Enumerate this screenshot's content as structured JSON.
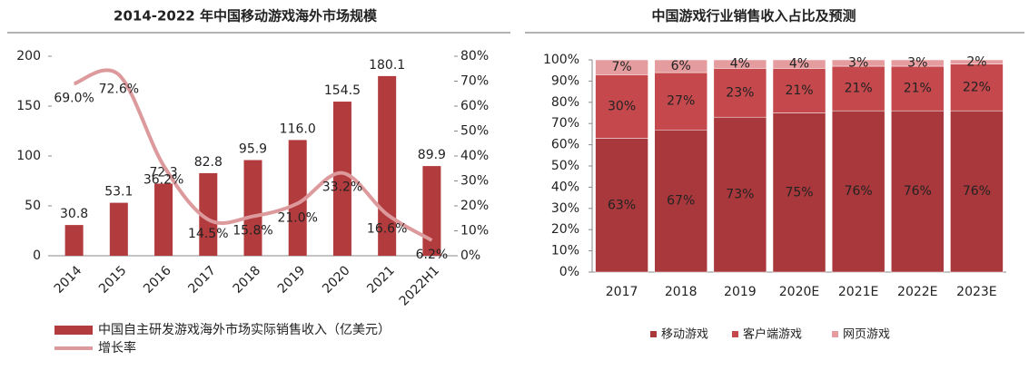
{
  "chart_data": [
    {
      "type": "combo",
      "title": "2014-2022 年中国移动游戏海外市场规模",
      "categories": [
        "2014",
        "2015",
        "2016",
        "2017",
        "2018",
        "2019",
        "2020",
        "2021",
        "2022H1"
      ],
      "series": [
        {
          "name": "中国自主研发游戏海外市场实际销售收入（亿美元）",
          "type": "bar",
          "color": "#b23b3d",
          "values": [
            30.8,
            53.1,
            72.3,
            82.8,
            95.9,
            116.0,
            154.5,
            180.1,
            89.9
          ],
          "value_labels": [
            "30.8",
            "53.1",
            "72.3",
            "82.8",
            "95.9",
            "116.0",
            "154.5",
            "180.1",
            "89.9"
          ]
        },
        {
          "name": "增长率",
          "type": "line",
          "axis": "y2",
          "color": "#dc9a9c",
          "values": [
            69.0,
            72.6,
            36.2,
            14.5,
            15.8,
            21.0,
            33.2,
            16.6,
            6.2
          ],
          "value_labels": [
            "69.0%",
            "72.6%",
            "36.2%",
            "14.5%",
            "15.8%",
            "21.0%",
            "33.2%",
            "16.6%",
            "6.2%"
          ]
        }
      ],
      "ylim": [
        0,
        200
      ],
      "yticks": [
        0,
        50,
        100,
        150,
        200
      ],
      "y2lim": [
        0,
        80
      ],
      "y2ticks": [
        {
          "value": 0,
          "label": "0%"
        },
        {
          "value": 10,
          "label": "10%"
        },
        {
          "value": 20,
          "label": "20%"
        },
        {
          "value": 30,
          "label": "30%"
        },
        {
          "value": 40,
          "label": "40%"
        },
        {
          "value": 50,
          "label": "50%"
        },
        {
          "value": 60,
          "label": "60%"
        },
        {
          "value": 70,
          "label": "70%"
        },
        {
          "value": 80,
          "label": "80%"
        }
      ],
      "legend": "bottom"
    },
    {
      "type": "stacked_bar",
      "title": "中国游戏行业销售收入占比及预测",
      "categories": [
        "2017",
        "2018",
        "2019",
        "2020E",
        "2021E",
        "2022E",
        "2023E"
      ],
      "series": [
        {
          "name": "移动游戏",
          "color": "#a8383b",
          "values": [
            63,
            67,
            73,
            75,
            76,
            76,
            76
          ],
          "value_labels": [
            "63%",
            "67%",
            "73%",
            "75%",
            "76%",
            "76%",
            "76%"
          ]
        },
        {
          "name": "客户端游戏",
          "color": "#c4484c",
          "values": [
            30,
            27,
            23,
            21,
            21,
            21,
            22
          ],
          "value_labels": [
            "30%",
            "27%",
            "23%",
            "21%",
            "21%",
            "21%",
            "22%"
          ]
        },
        {
          "name": "网页游戏",
          "color": "#e59c9e",
          "values": [
            7,
            6,
            4,
            4,
            3,
            3,
            2
          ],
          "value_labels": [
            "7%",
            "6%",
            "4%",
            "4%",
            "3%",
            "3%",
            "2%"
          ]
        }
      ],
      "ylim": [
        0,
        100
      ],
      "yticks": [
        {
          "value": 0,
          "label": "0%"
        },
        {
          "value": 10,
          "label": "10%"
        },
        {
          "value": 20,
          "label": "20%"
        },
        {
          "value": 30,
          "label": "30%"
        },
        {
          "value": 40,
          "label": "40%"
        },
        {
          "value": 50,
          "label": "50%"
        },
        {
          "value": 60,
          "label": "60%"
        },
        {
          "value": 70,
          "label": "70%"
        },
        {
          "value": 80,
          "label": "80%"
        },
        {
          "value": 90,
          "label": "90%"
        },
        {
          "value": 100,
          "label": "100%"
        }
      ],
      "legend": "bottom"
    }
  ]
}
